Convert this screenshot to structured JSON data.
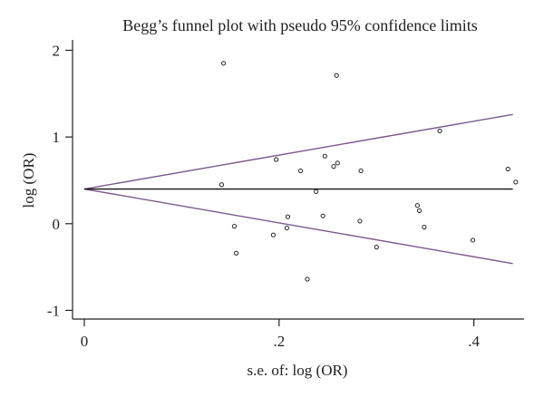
{
  "chart_data": {
    "type": "scatter",
    "title": "Begg’s funnel plot with pseudo 95% confidence limits",
    "xlabel": "s.e. of: log (OR)",
    "ylabel": "log (OR)",
    "xlim": [
      0,
      0.445
    ],
    "ylim": [
      -1.1,
      2.12
    ],
    "x_ticks": [
      {
        "value": 0,
        "label": "0"
      },
      {
        "value": 0.2,
        "label": ".2"
      },
      {
        "value": 0.4,
        "label": ".4"
      }
    ],
    "y_ticks": [
      {
        "value": -1,
        "label": "-1"
      },
      {
        "value": 0,
        "label": "0"
      },
      {
        "value": 1,
        "label": "1"
      },
      {
        "value": 2,
        "label": "2"
      }
    ],
    "pooled_estimate": 0.4,
    "limits_x_range": [
      0,
      0.44
    ],
    "upper_limit": [
      [
        0,
        0.4
      ],
      [
        0.44,
        1.26
      ]
    ],
    "lower_limit": [
      [
        0,
        0.4
      ],
      [
        0.44,
        -0.46
      ]
    ],
    "points": [
      [
        0.143,
        1.85
      ],
      [
        0.141,
        0.45
      ],
      [
        0.154,
        -0.03
      ],
      [
        0.156,
        -0.34
      ],
      [
        0.194,
        -0.13
      ],
      [
        0.197,
        0.74
      ],
      [
        0.208,
        -0.05
      ],
      [
        0.209,
        0.08
      ],
      [
        0.222,
        0.61
      ],
      [
        0.229,
        -0.64
      ],
      [
        0.238,
        0.37
      ],
      [
        0.245,
        0.09
      ],
      [
        0.247,
        0.78
      ],
      [
        0.256,
        0.66
      ],
      [
        0.259,
        1.71
      ],
      [
        0.26,
        0.7
      ],
      [
        0.283,
        0.03
      ],
      [
        0.284,
        0.61
      ],
      [
        0.3,
        -0.27
      ],
      [
        0.342,
        0.21
      ],
      [
        0.344,
        0.15
      ],
      [
        0.349,
        -0.04
      ],
      [
        0.365,
        1.07
      ],
      [
        0.399,
        -0.19
      ],
      [
        0.435,
        0.63
      ],
      [
        0.443,
        0.48
      ]
    ],
    "colors": {
      "limits": "#7b5a8a",
      "pooled": "#111111",
      "points": "#222222",
      "axes": "#222222"
    }
  }
}
